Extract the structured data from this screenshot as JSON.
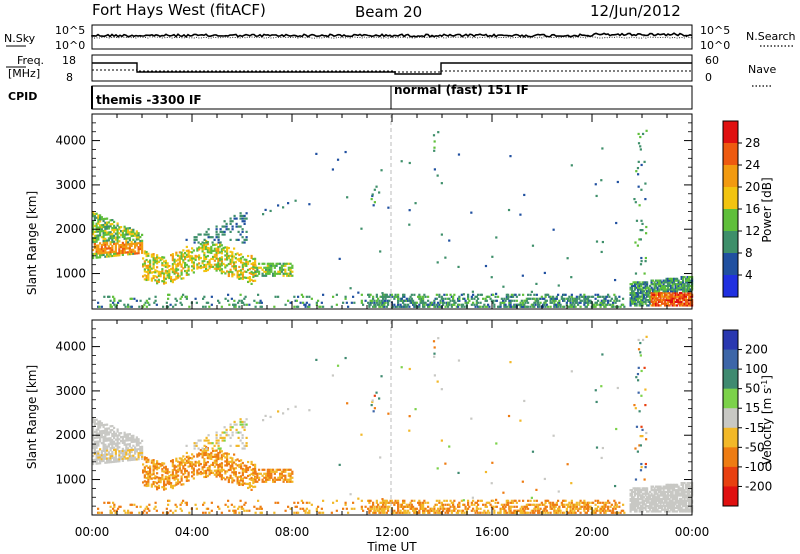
{
  "header": {
    "station": "Fort Hays West (fitACF)",
    "beam": "Beam 20",
    "date": "12/Jun/2012"
  },
  "noise_panel": {
    "left_label": "N.Sky",
    "right_label": "N.Search",
    "left_ticks": [
      "10^5",
      "10^0"
    ],
    "right_ticks": [
      "10^5",
      "10^0"
    ]
  },
  "freq_panel": {
    "left_label_line1": "Freq.",
    "left_label_line2": "[MHz]",
    "right_label": "Nave",
    "left_ticks": [
      "18",
      "8"
    ],
    "right_ticks": [
      "60",
      "0"
    ]
  },
  "cpid_panel": {
    "label": "CPID",
    "segments": [
      "themis -3300 IF",
      "normal (fast) 151 IF"
    ]
  },
  "power_colorbar": {
    "label": "Power [dB]",
    "ticks": [
      "28",
      "24",
      "20",
      "16",
      "12",
      "8",
      "4"
    ],
    "colors": [
      "#e01010",
      "#ee5a10",
      "#f29a10",
      "#f2c410",
      "#5fbf3a",
      "#3e8f6a",
      "#2050a0",
      "#2030e0"
    ]
  },
  "velocity_colorbar": {
    "label": "Velocity [m s",
    "label_sup": "-1",
    "label_end": "]",
    "ticks": [
      "200",
      "100",
      "50",
      "15",
      "-15",
      "-50",
      "-100",
      "-200"
    ],
    "colors": [
      "#2a38b0",
      "#3d66a8",
      "#3f8a70",
      "#7cd24a",
      "#c8c8c4",
      "#f2b828",
      "#ee7c12",
      "#e84010",
      "#e01010"
    ]
  },
  "chart_data": [
    {
      "type": "heatmap",
      "title": "Power",
      "ylabel": "Slant Range [km]",
      "xlabel": "Time UT",
      "ylim": [
        200,
        4600
      ],
      "y_ticks": [
        "1000",
        "2000",
        "3000",
        "4000"
      ],
      "x_ticks": [
        "00:00",
        "04:00",
        "08:00",
        "12:00",
        "16:00",
        "20:00",
        "00:00"
      ],
      "regions": [
        {
          "t0": 0.0,
          "t1": 2.0,
          "r0": 1300,
          "r1": 2400,
          "value_db": 18
        },
        {
          "t0": 2.0,
          "t1": 6.5,
          "r0": 900,
          "r1": 1700,
          "value_db": 16
        },
        {
          "t0": 6.5,
          "t1": 8.0,
          "r0": 950,
          "r1": 1200,
          "value_db": 10
        },
        {
          "t0": 21.5,
          "t1": 24.0,
          "r0": 300,
          "r1": 900,
          "value_db": 20
        }
      ]
    },
    {
      "type": "heatmap",
      "title": "Velocity",
      "ylabel": "Slant Range [km]",
      "xlabel": "Time UT",
      "ylim": [
        200,
        4600
      ],
      "y_ticks": [
        "1000",
        "2000",
        "3000",
        "4000"
      ],
      "x_ticks": [
        "00:00",
        "04:00",
        "08:00",
        "12:00",
        "16:00",
        "20:00",
        "00:00"
      ],
      "regions": [
        {
          "t0": 0.0,
          "t1": 2.0,
          "r0": 1300,
          "r1": 2400,
          "value_ms": 0
        },
        {
          "t0": 2.0,
          "t1": 6.5,
          "r0": 900,
          "r1": 1700,
          "value_ms": -30
        },
        {
          "t0": 6.5,
          "t1": 8.0,
          "r0": 950,
          "r1": 1200,
          "value_ms": -40
        },
        {
          "t0": 21.5,
          "t1": 24.0,
          "r0": 300,
          "r1": 900,
          "value_ms": 0
        }
      ]
    }
  ]
}
